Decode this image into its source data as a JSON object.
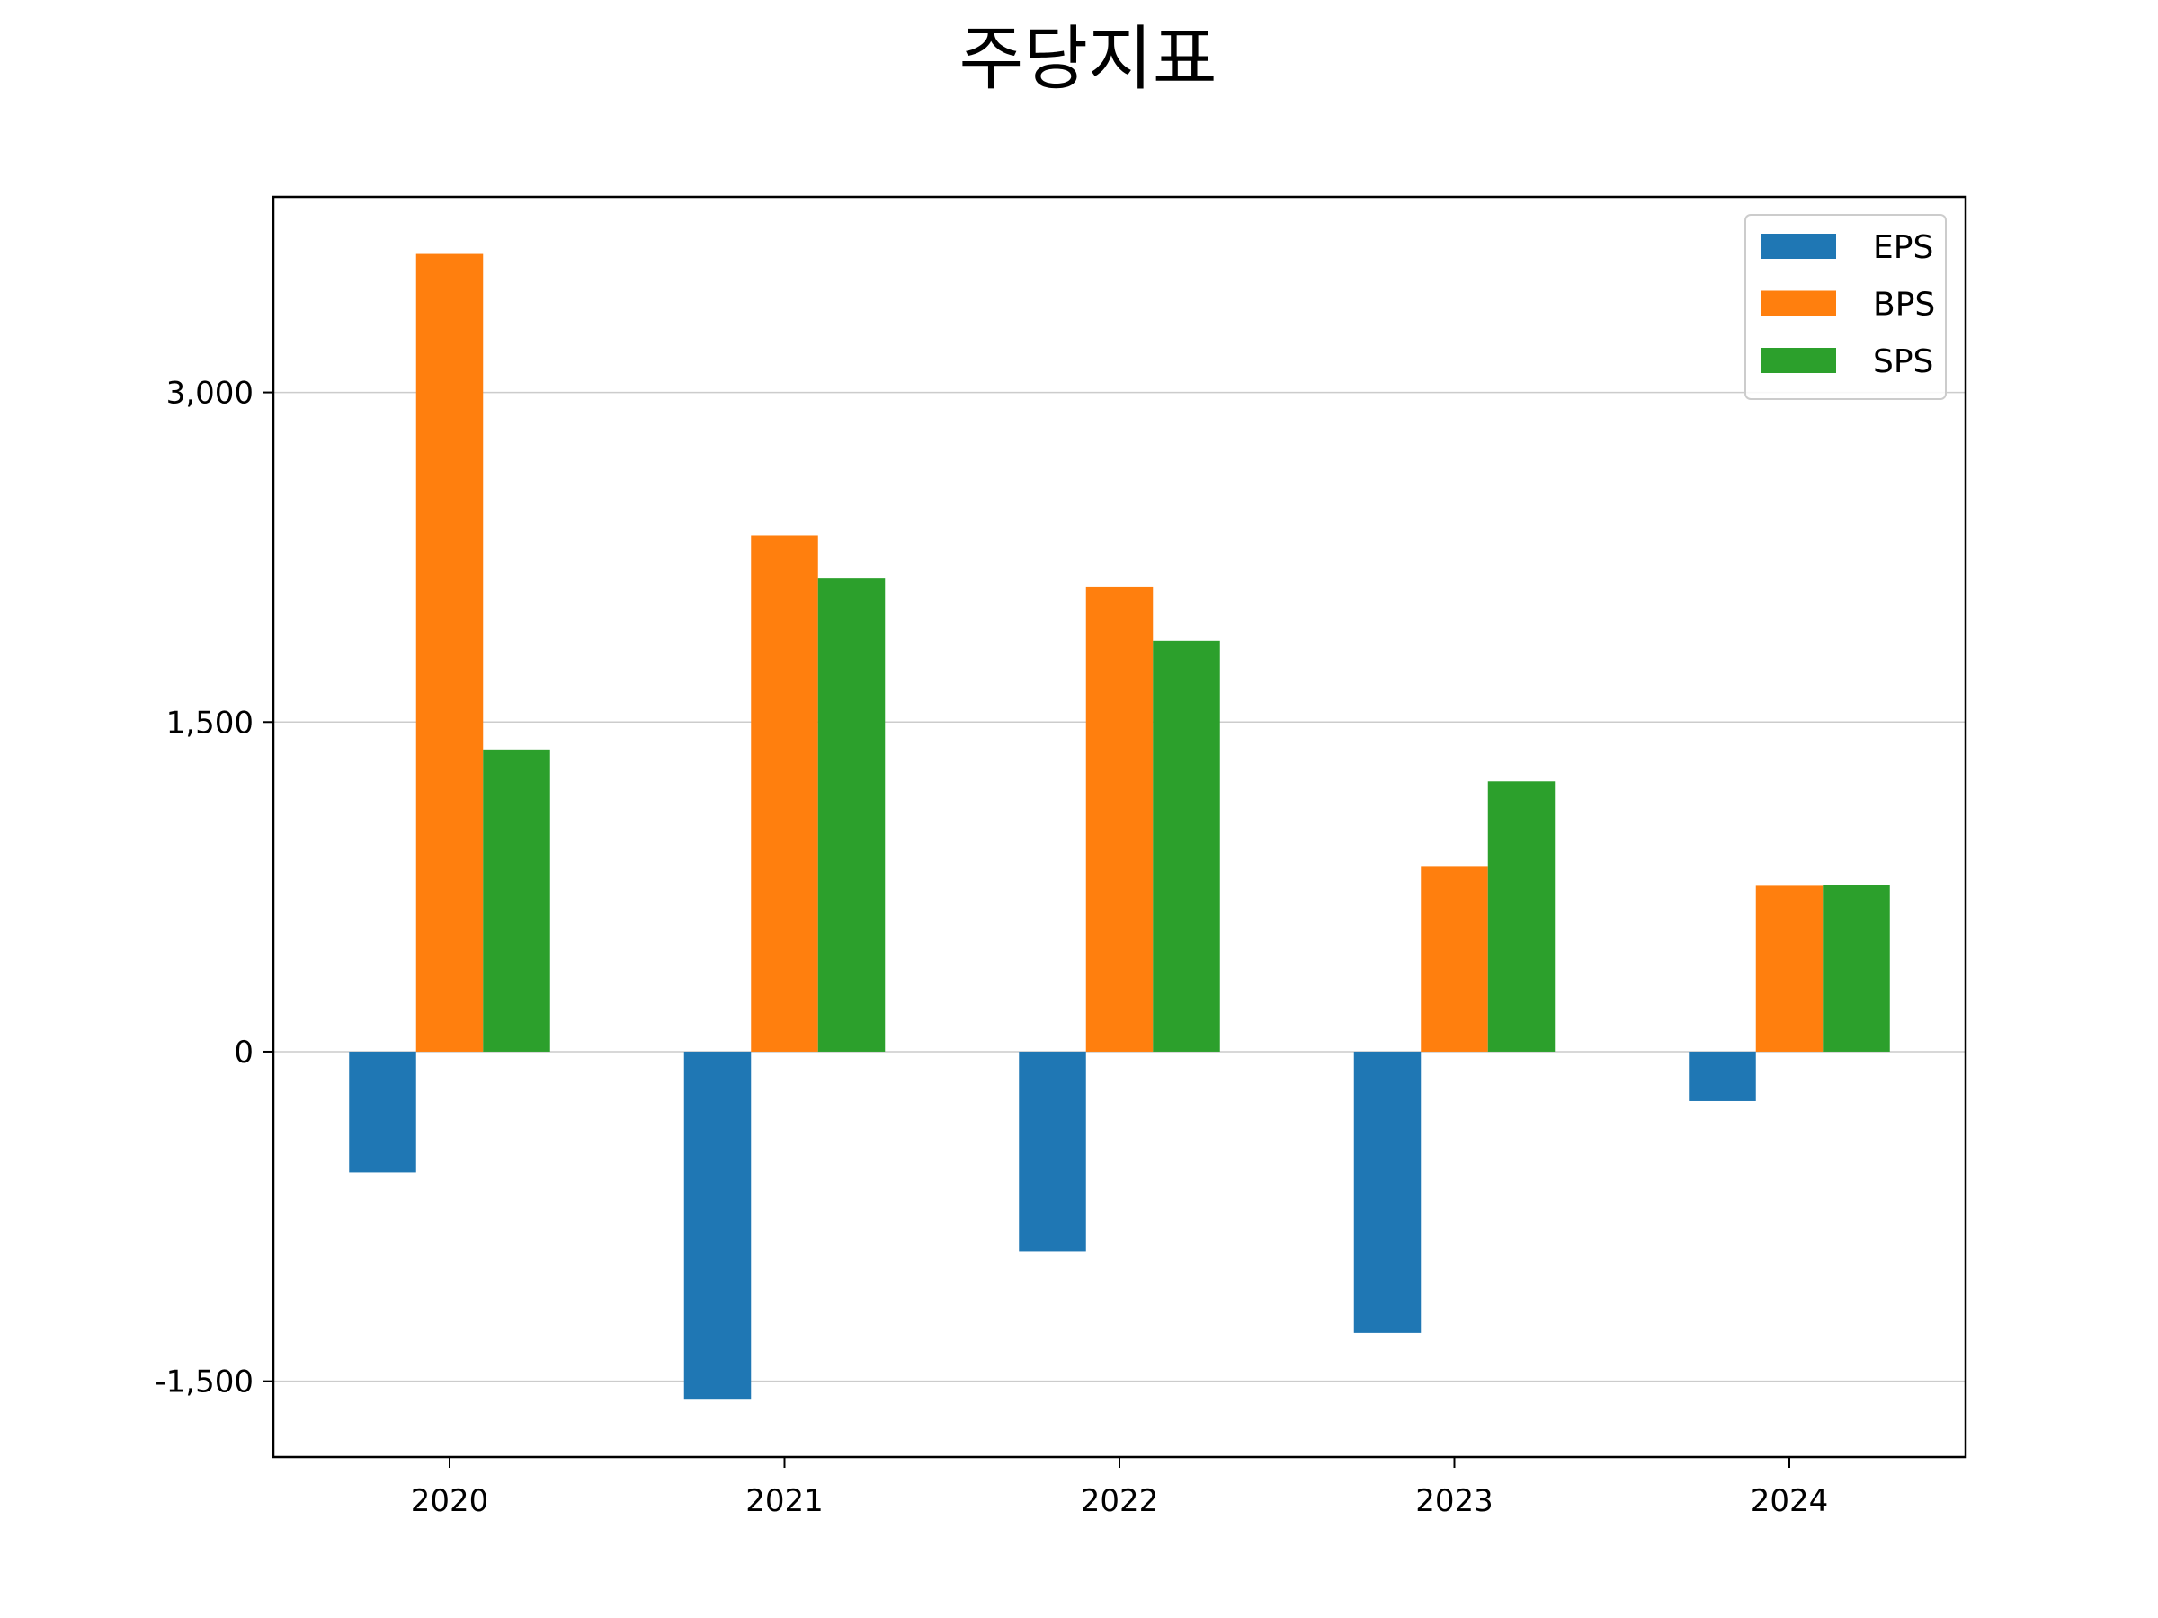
{
  "chart_data": {
    "type": "bar",
    "title": "주당지표",
    "xlabel": "",
    "ylabel": "",
    "categories": [
      "2020",
      "2021",
      "2022",
      "2023",
      "2024"
    ],
    "series": [
      {
        "name": "EPS",
        "color": "#1f77b4",
        "values": [
          -550,
          -1580,
          -910,
          -1280,
          -225
        ]
      },
      {
        "name": "BPS",
        "color": "#ff7f0e",
        "values": [
          3630,
          2350,
          2115,
          845,
          755
        ]
      },
      {
        "name": "SPS",
        "color": "#2ca02c",
        "values": [
          1375,
          2155,
          1870,
          1230,
          760
        ]
      }
    ],
    "ylim": [
      -1845,
      3890
    ],
    "yticks": [
      -1500,
      0,
      1500,
      3000
    ],
    "ytick_labels": [
      "-1,500",
      "0",
      "1,500",
      "3,000"
    ],
    "grid": "y",
    "legend": "top-right"
  }
}
